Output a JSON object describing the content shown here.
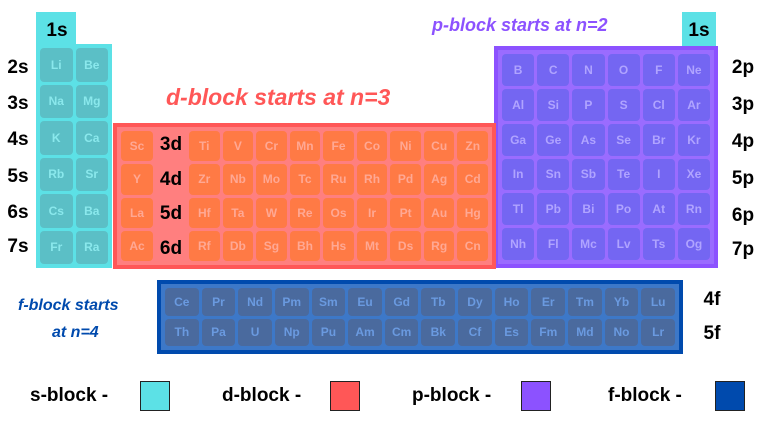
{
  "colors": {
    "s": "#5ce1e6",
    "d": "#ff5757",
    "p": "#8c52ff",
    "f": "#004aad"
  },
  "titles": {
    "d": "d-block starts at n=3",
    "p": "p-block starts at n=2",
    "f_line1": "f-block starts",
    "f_line2": "at n=4"
  },
  "s_block": {
    "top": "1s",
    "top_right": "1s",
    "elements": [
      [
        "Li",
        "Be"
      ],
      [
        "Na",
        "Mg"
      ],
      [
        "K",
        "Ca"
      ],
      [
        "Rb",
        "Sr"
      ],
      [
        "Cs",
        "Ba"
      ],
      [
        "Fr",
        "Ra"
      ]
    ],
    "orbitals": [
      "2s",
      "3s",
      "4s",
      "5s",
      "6s",
      "7s"
    ]
  },
  "d_block": {
    "elements": [
      [
        "Sc",
        "Ti",
        "V",
        "Cr",
        "Mn",
        "Fe",
        "Co",
        "Ni",
        "Cu",
        "Zn"
      ],
      [
        "Y",
        "Zr",
        "Nb",
        "Mo",
        "Tc",
        "Ru",
        "Rh",
        "Pd",
        "Ag",
        "Cd"
      ],
      [
        "La",
        "Hf",
        "Ta",
        "W",
        "Re",
        "Os",
        "Ir",
        "Pt",
        "Au",
        "Hg"
      ],
      [
        "Ac",
        "Rf",
        "Db",
        "Sg",
        "Bh",
        "Hs",
        "Mt",
        "Ds",
        "Rg",
        "Cn"
      ]
    ],
    "orbitals": [
      "3d",
      "4d",
      "5d",
      "6d"
    ]
  },
  "p_block": {
    "elements": [
      [
        "B",
        "C",
        "N",
        "O",
        "F",
        "Ne"
      ],
      [
        "Al",
        "Si",
        "P",
        "S",
        "Cl",
        "Ar"
      ],
      [
        "Ga",
        "Ge",
        "As",
        "Se",
        "Br",
        "Kr"
      ],
      [
        "In",
        "Sn",
        "Sb",
        "Te",
        "I",
        "Xe"
      ],
      [
        "Tl",
        "Pb",
        "Bi",
        "Po",
        "At",
        "Rn"
      ],
      [
        "Nh",
        "Fl",
        "Mc",
        "Lv",
        "Ts",
        "Og"
      ]
    ],
    "orbitals": [
      "2p",
      "3p",
      "4p",
      "5p",
      "6p",
      "7p"
    ]
  },
  "f_block": {
    "elements": [
      [
        "Ce",
        "Pr",
        "Nd",
        "Pm",
        "Sm",
        "Eu",
        "Gd",
        "Tb",
        "Dy",
        "Ho",
        "Er",
        "Tm",
        "Yb",
        "Lu"
      ],
      [
        "Th",
        "Pa",
        "U",
        "Np",
        "Pu",
        "Am",
        "Cm",
        "Bk",
        "Cf",
        "Es",
        "Fm",
        "Md",
        "No",
        "Lr"
      ]
    ],
    "orbitals": [
      "4f",
      "5f"
    ]
  },
  "legend": [
    {
      "label": "s-block -",
      "color": "#5ce1e6"
    },
    {
      "label": "d-block -",
      "color": "#ff5757"
    },
    {
      "label": "p-block -",
      "color": "#8c52ff"
    },
    {
      "label": "f-block -",
      "color": "#004aad"
    }
  ]
}
